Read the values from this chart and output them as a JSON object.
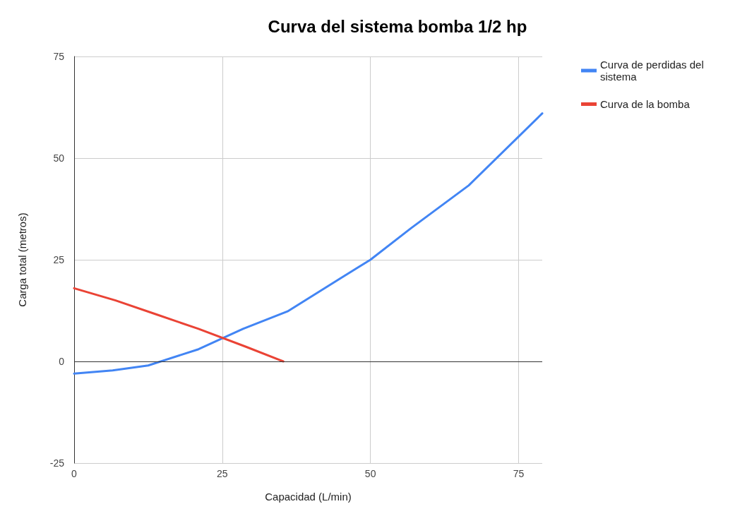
{
  "chart_data": {
    "type": "line",
    "title": "Curva del sistema bomba 1/2 hp",
    "xlabel": "Capacidad (L/min)",
    "ylabel": "Carga total (metros)",
    "xlim": [
      0,
      79
    ],
    "xticks": [
      0,
      25,
      50,
      75
    ],
    "ylim": [
      -25,
      75
    ],
    "yticks": [
      -25,
      0,
      25,
      50,
      75
    ],
    "grid": true,
    "legend": "top right",
    "series": [
      {
        "name": "Curva de perdidas del sistema",
        "color": "#4285f4",
        "x": [
          0,
          6.5,
          12.5,
          21,
          28.5,
          36,
          45,
          50,
          56.8,
          66.6,
          79
        ],
        "values": [
          -3,
          -2.2,
          -1,
          3,
          8,
          12.3,
          20.5,
          25,
          32.7,
          43.3,
          61
        ]
      },
      {
        "name": "Curva de la bomba",
        "color": "#ea4335",
        "x": [
          0,
          7,
          14,
          21,
          29,
          35.3
        ],
        "values": [
          18,
          15,
          11.5,
          8,
          3.6,
          0
        ]
      }
    ]
  }
}
